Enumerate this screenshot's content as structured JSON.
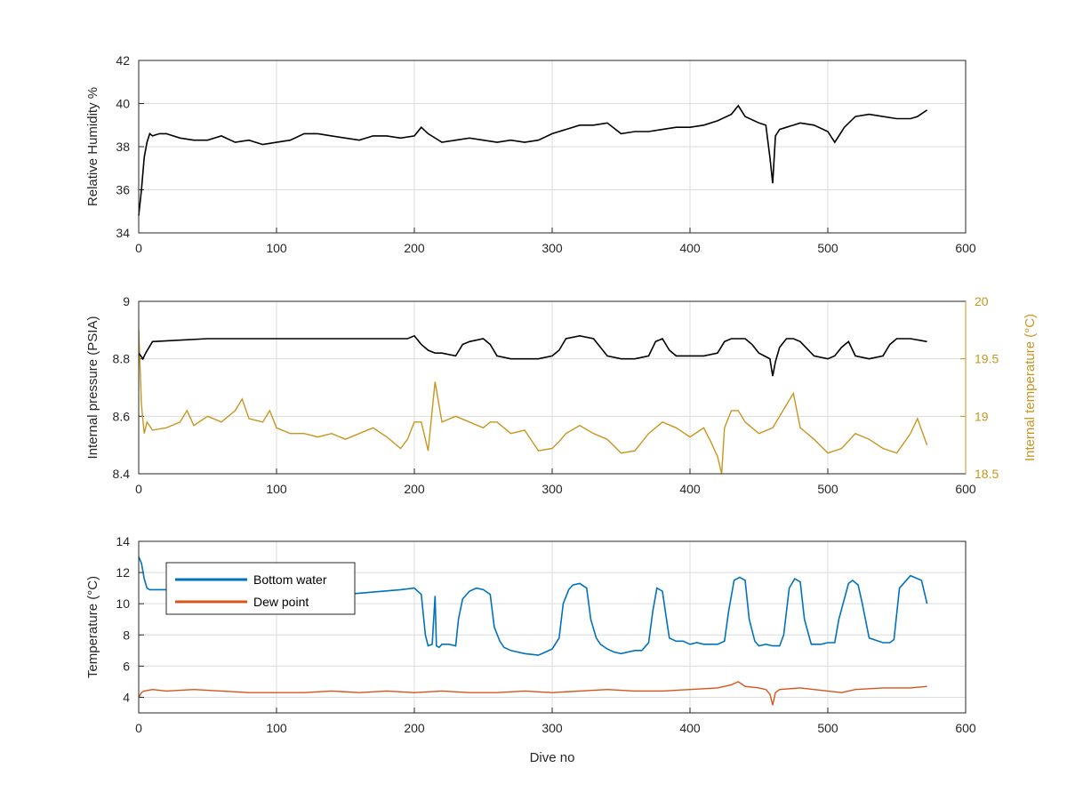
{
  "chart_data": [
    {
      "type": "line",
      "xlabel": "",
      "ylabel": "Relative Humidity %",
      "xlim": [
        0,
        600
      ],
      "ylim": [
        34,
        42
      ],
      "xticks": [
        "0",
        "100",
        "200",
        "300",
        "400",
        "500",
        "600"
      ],
      "yticks": [
        "34",
        "36",
        "38",
        "40",
        "42"
      ],
      "grid": true,
      "series": [
        {
          "color": "#000000",
          "x": [
            0,
            2,
            4,
            6,
            8,
            10,
            15,
            20,
            30,
            40,
            50,
            60,
            70,
            80,
            90,
            100,
            110,
            120,
            130,
            140,
            150,
            160,
            170,
            180,
            190,
            200,
            205,
            210,
            220,
            230,
            240,
            250,
            260,
            270,
            280,
            290,
            300,
            310,
            320,
            330,
            340,
            350,
            360,
            370,
            380,
            390,
            400,
            410,
            420,
            430,
            435,
            440,
            450,
            455,
            458,
            460,
            462,
            465,
            470,
            480,
            490,
            500,
            505,
            508,
            512,
            520,
            530,
            540,
            550,
            560,
            565,
            572
          ],
          "y": [
            34.8,
            36.0,
            37.5,
            38.2,
            38.6,
            38.5,
            38.6,
            38.6,
            38.4,
            38.3,
            38.3,
            38.5,
            38.2,
            38.3,
            38.1,
            38.2,
            38.3,
            38.6,
            38.6,
            38.5,
            38.4,
            38.3,
            38.5,
            38.5,
            38.4,
            38.5,
            38.9,
            38.6,
            38.2,
            38.3,
            38.4,
            38.3,
            38.2,
            38.3,
            38.2,
            38.3,
            38.6,
            38.8,
            39.0,
            39.0,
            39.1,
            38.6,
            38.7,
            38.7,
            38.8,
            38.9,
            38.9,
            39.0,
            39.2,
            39.5,
            39.9,
            39.4,
            39.1,
            39.0,
            37.5,
            36.3,
            38.5,
            38.8,
            38.9,
            39.1,
            39.0,
            38.7,
            38.2,
            38.5,
            38.9,
            39.4,
            39.5,
            39.4,
            39.3,
            39.3,
            39.4,
            39.7
          ]
        }
      ]
    },
    {
      "type": "line",
      "xlabel": "",
      "ylabel": "Internal pressure (PSIA)",
      "y2label": "Internal temperature (°C)",
      "xlim": [
        0,
        600
      ],
      "ylim": [
        8.4,
        9.0
      ],
      "y2lim": [
        18.5,
        20.0
      ],
      "xticks": [
        "0",
        "100",
        "200",
        "300",
        "400",
        "500",
        "600"
      ],
      "yticks": [
        "8.4",
        "8.6",
        "8.8",
        "9"
      ],
      "y2ticks": [
        "18.5",
        "19",
        "19.5",
        "20"
      ],
      "grid": true,
      "series": [
        {
          "axis": "left",
          "color": "#000000",
          "x": [
            0,
            3,
            5,
            10,
            50,
            100,
            150,
            195,
            200,
            205,
            210,
            215,
            220,
            230,
            235,
            240,
            250,
            255,
            260,
            270,
            280,
            290,
            300,
            305,
            310,
            320,
            330,
            335,
            340,
            350,
            360,
            370,
            375,
            380,
            385,
            390,
            400,
            410,
            420,
            425,
            430,
            440,
            445,
            450,
            458,
            460,
            462,
            465,
            470,
            475,
            480,
            490,
            500,
            505,
            510,
            515,
            520,
            530,
            540,
            545,
            550,
            560,
            572
          ],
          "y": [
            8.82,
            8.8,
            8.82,
            8.86,
            8.87,
            8.87,
            8.87,
            8.87,
            8.88,
            8.85,
            8.83,
            8.82,
            8.82,
            8.81,
            8.85,
            8.86,
            8.87,
            8.85,
            8.81,
            8.8,
            8.8,
            8.8,
            8.81,
            8.83,
            8.87,
            8.88,
            8.87,
            8.84,
            8.81,
            8.8,
            8.8,
            8.81,
            8.86,
            8.87,
            8.83,
            8.81,
            8.81,
            8.81,
            8.82,
            8.86,
            8.87,
            8.87,
            8.85,
            8.82,
            8.8,
            8.74,
            8.79,
            8.84,
            8.87,
            8.87,
            8.86,
            8.81,
            8.8,
            8.81,
            8.84,
            8.86,
            8.81,
            8.8,
            8.81,
            8.85,
            8.87,
            8.87,
            8.86
          ]
        },
        {
          "axis": "right",
          "color": "#C8961E",
          "x": [
            0,
            2,
            4,
            6,
            10,
            20,
            30,
            35,
            40,
            50,
            60,
            70,
            75,
            80,
            90,
            95,
            100,
            110,
            120,
            130,
            140,
            150,
            160,
            170,
            180,
            190,
            195,
            200,
            205,
            210,
            215,
            220,
            230,
            240,
            250,
            255,
            260,
            270,
            280,
            290,
            300,
            305,
            310,
            320,
            330,
            340,
            350,
            360,
            370,
            380,
            390,
            400,
            410,
            415,
            420,
            423,
            425,
            430,
            435,
            440,
            450,
            460,
            470,
            475,
            480,
            490,
            500,
            510,
            520,
            530,
            540,
            550,
            560,
            565,
            572
          ],
          "y": [
            19.75,
            19.1,
            18.85,
            18.95,
            18.88,
            18.9,
            18.95,
            19.05,
            18.92,
            19.0,
            18.95,
            19.05,
            19.15,
            18.98,
            18.95,
            19.05,
            18.9,
            18.85,
            18.85,
            18.82,
            18.85,
            18.8,
            18.85,
            18.9,
            18.82,
            18.72,
            18.8,
            18.95,
            18.95,
            18.7,
            19.3,
            18.95,
            19.0,
            18.95,
            18.9,
            18.95,
            18.95,
            18.85,
            18.88,
            18.7,
            18.72,
            18.78,
            18.85,
            18.92,
            18.85,
            18.8,
            18.68,
            18.7,
            18.85,
            18.95,
            18.9,
            18.82,
            18.9,
            18.78,
            18.65,
            18.5,
            18.9,
            19.05,
            19.05,
            18.95,
            18.85,
            18.9,
            19.1,
            19.2,
            18.9,
            18.8,
            18.68,
            18.72,
            18.85,
            18.8,
            18.72,
            18.68,
            18.85,
            18.98,
            18.75
          ]
        }
      ]
    },
    {
      "type": "line",
      "xlabel": "Dive no",
      "ylabel": "Temperature (°C)",
      "xlim": [
        0,
        600
      ],
      "ylim": [
        3,
        14
      ],
      "xticks": [
        "0",
        "100",
        "200",
        "300",
        "400",
        "500",
        "600"
      ],
      "yticks": [
        "4",
        "6",
        "8",
        "10",
        "12",
        "14"
      ],
      "grid": true,
      "legend": "top-left",
      "series": [
        {
          "name": "Bottom water",
          "color": "#0072BD",
          "x": [
            0,
            2,
            4,
            6,
            8,
            10,
            20,
            50,
            100,
            150,
            190,
            200,
            205,
            208,
            210,
            213,
            215,
            216,
            218,
            220,
            225,
            230,
            232,
            235,
            240,
            245,
            250,
            255,
            258,
            262,
            265,
            270,
            280,
            290,
            295,
            300,
            305,
            308,
            312,
            315,
            320,
            325,
            328,
            332,
            335,
            340,
            345,
            350,
            360,
            365,
            370,
            373,
            376,
            380,
            383,
            385,
            390,
            395,
            400,
            405,
            410,
            420,
            425,
            428,
            432,
            436,
            440,
            443,
            447,
            450,
            455,
            460,
            465,
            468,
            472,
            476,
            480,
            483,
            488,
            495,
            500,
            505,
            508,
            515,
            518,
            522,
            525,
            530,
            540,
            545,
            548,
            552,
            560,
            568,
            572
          ],
          "y": [
            13.0,
            12.6,
            11.6,
            11.0,
            10.9,
            10.9,
            10.9,
            10.8,
            10.7,
            10.6,
            10.9,
            11.0,
            10.6,
            8.0,
            7.3,
            7.4,
            10.5,
            7.3,
            7.2,
            7.4,
            7.4,
            7.3,
            9.0,
            10.3,
            10.8,
            11.0,
            10.9,
            10.6,
            8.5,
            7.6,
            7.2,
            7.0,
            6.8,
            6.7,
            6.9,
            7.1,
            7.8,
            10.0,
            10.9,
            11.2,
            11.3,
            11.0,
            9.0,
            7.8,
            7.4,
            7.1,
            6.9,
            6.8,
            7.0,
            7.0,
            7.5,
            9.5,
            11.0,
            10.8,
            9.0,
            7.8,
            7.6,
            7.6,
            7.4,
            7.5,
            7.4,
            7.4,
            7.6,
            9.5,
            11.5,
            11.7,
            11.5,
            9.0,
            7.6,
            7.3,
            7.4,
            7.3,
            7.3,
            8.0,
            11.0,
            11.6,
            11.4,
            9.0,
            7.4,
            7.4,
            7.5,
            7.5,
            9.0,
            11.3,
            11.5,
            11.2,
            10.0,
            7.8,
            7.5,
            7.5,
            7.7,
            11.0,
            11.8,
            11.5,
            10.0
          ]
        },
        {
          "name": "Dew point",
          "color": "#D95319",
          "x": [
            0,
            2,
            4,
            10,
            20,
            40,
            60,
            80,
            100,
            120,
            140,
            160,
            180,
            200,
            220,
            240,
            260,
            280,
            300,
            320,
            340,
            360,
            380,
            400,
            420,
            430,
            435,
            440,
            450,
            455,
            458,
            460,
            462,
            465,
            480,
            500,
            510,
            520,
            540,
            560,
            572
          ],
          "y": [
            4.0,
            4.3,
            4.4,
            4.5,
            4.4,
            4.5,
            4.4,
            4.3,
            4.3,
            4.3,
            4.4,
            4.3,
            4.4,
            4.3,
            4.4,
            4.3,
            4.3,
            4.4,
            4.3,
            4.4,
            4.5,
            4.4,
            4.4,
            4.5,
            4.6,
            4.8,
            5.0,
            4.7,
            4.6,
            4.5,
            4.2,
            3.5,
            4.3,
            4.5,
            4.6,
            4.4,
            4.3,
            4.5,
            4.6,
            4.6,
            4.7
          ]
        }
      ]
    }
  ]
}
